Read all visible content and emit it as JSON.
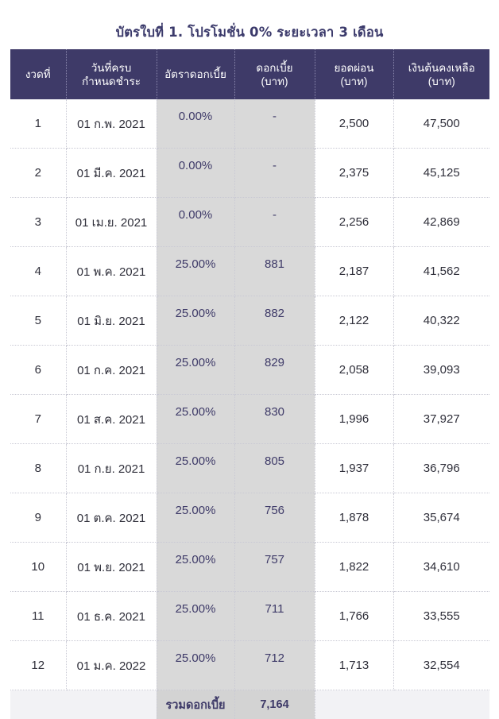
{
  "title": "บัตรใบที่ 1. โปรโมชั่น 0% ระยะเวลา 3 เดือน",
  "headers": {
    "installment": "งวดที่",
    "due_date": "วันที่ครบ\nกำหนดชำระ",
    "interest_rate": "อัตราดอกเบี้ย",
    "interest": "ดอกเบี้ย\n(บาท)",
    "payment": "ยอดผ่อน\n(บาท)",
    "principal_remaining": "เงินต้นคงเหลือ\n(บาท)"
  },
  "rows": [
    {
      "no": "1",
      "date": "01 ก.พ. 2021",
      "rate": "0.00%",
      "interest": "-",
      "payment": "2,500",
      "remaining": "47,500"
    },
    {
      "no": "2",
      "date": "01 มี.ค. 2021",
      "rate": "0.00%",
      "interest": "-",
      "payment": "2,375",
      "remaining": "45,125"
    },
    {
      "no": "3",
      "date": "01 เม.ย. 2021",
      "rate": "0.00%",
      "interest": "-",
      "payment": "2,256",
      "remaining": "42,869"
    },
    {
      "no": "4",
      "date": "01 พ.ค. 2021",
      "rate": "25.00%",
      "interest": "881",
      "payment": "2,187",
      "remaining": "41,562"
    },
    {
      "no": "5",
      "date": "01 มิ.ย. 2021",
      "rate": "25.00%",
      "interest": "882",
      "payment": "2,122",
      "remaining": "40,322"
    },
    {
      "no": "6",
      "date": "01 ก.ค. 2021",
      "rate": "25.00%",
      "interest": "829",
      "payment": "2,058",
      "remaining": "39,093"
    },
    {
      "no": "7",
      "date": "01 ส.ค. 2021",
      "rate": "25.00%",
      "interest": "830",
      "payment": "1,996",
      "remaining": "37,927"
    },
    {
      "no": "8",
      "date": "01 ก.ย. 2021",
      "rate": "25.00%",
      "interest": "805",
      "payment": "1,937",
      "remaining": "36,796"
    },
    {
      "no": "9",
      "date": "01 ต.ค. 2021",
      "rate": "25.00%",
      "interest": "756",
      "payment": "1,878",
      "remaining": "35,674"
    },
    {
      "no": "10",
      "date": "01 พ.ย. 2021",
      "rate": "25.00%",
      "interest": "757",
      "payment": "1,822",
      "remaining": "34,610"
    },
    {
      "no": "11",
      "date": "01 ธ.ค. 2021",
      "rate": "25.00%",
      "interest": "711",
      "payment": "1,766",
      "remaining": "33,555"
    },
    {
      "no": "12",
      "date": "01 ม.ค. 2022",
      "rate": "25.00%",
      "interest": "712",
      "payment": "1,713",
      "remaining": "32,554"
    }
  ],
  "total": {
    "label": "รวมดอกเบี้ย",
    "value": "7,164"
  }
}
